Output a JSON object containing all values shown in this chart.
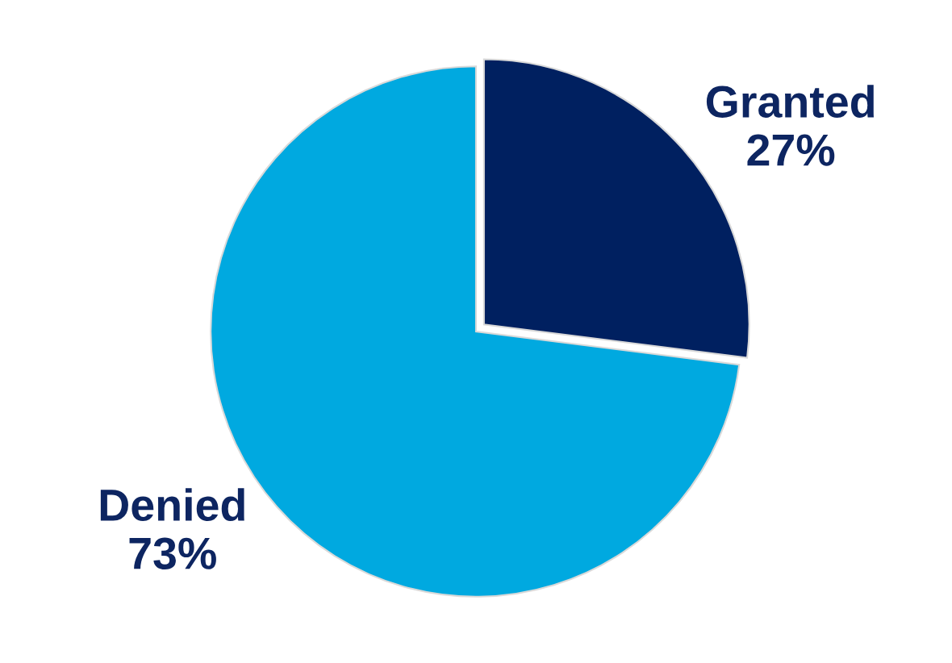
{
  "chart_data": {
    "type": "pie",
    "categories": [
      "Granted",
      "Denied"
    ],
    "values": [
      27,
      73
    ],
    "value_labels": [
      "27%",
      "73%"
    ],
    "colors": [
      "#002060",
      "#00a9e0"
    ]
  }
}
